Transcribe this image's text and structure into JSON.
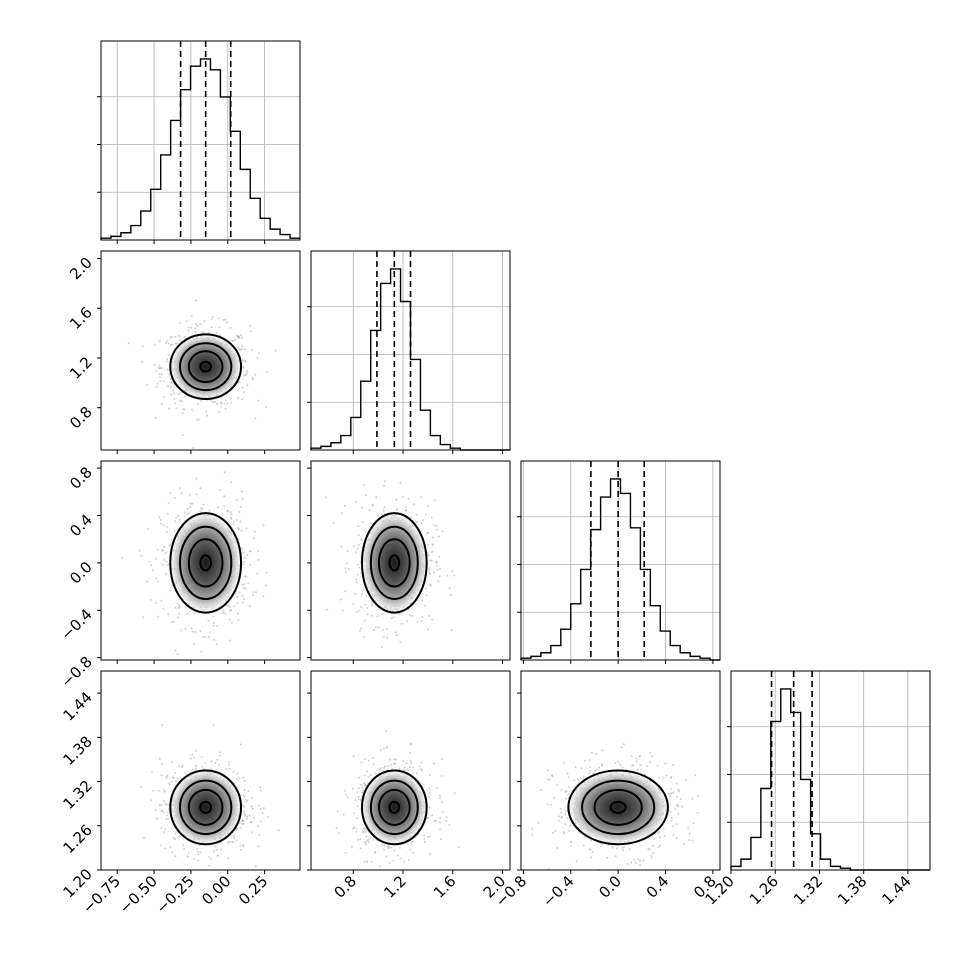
{
  "chart_data": {
    "type": "corner",
    "parameters": 4,
    "ranges": [
      [
        -0.86,
        0.49
      ],
      [
        0.46,
        2.06
      ],
      [
        -0.82,
        0.86
      ],
      [
        1.2,
        1.47
      ]
    ],
    "ticks": [
      [
        -0.75,
        -0.5,
        -0.25,
        0.0,
        0.25
      ],
      [
        0.8,
        1.2,
        1.6,
        2.0
      ],
      [
        -0.8,
        -0.4,
        0.0,
        0.4,
        0.8
      ],
      [
        1.2,
        1.26,
        1.32,
        1.38,
        1.44
      ]
    ],
    "tick_labels": [
      [
        "−0.75",
        "−0.50",
        "−0.25",
        "0.00",
        "0.25"
      ],
      [
        "0.8",
        "1.2",
        "1.6",
        "2.0"
      ],
      [
        "−0.8",
        "−0.4",
        "0.0",
        "0.4",
        "0.8"
      ],
      [
        "1.20",
        "1.26",
        "1.32",
        "1.38",
        "1.44"
      ]
    ],
    "means": [
      -0.15,
      1.13,
      0.0,
      1.285
    ],
    "stds": [
      0.12,
      0.13,
      0.21,
      0.025
    ],
    "quantiles": [
      [
        -0.32,
        -0.15,
        0.02
      ],
      [
        0.99,
        1.13,
        1.26
      ],
      [
        -0.23,
        0.0,
        0.22
      ],
      [
        1.255,
        1.285,
        1.31
      ]
    ],
    "histograms": [
      {
        "edges": [
          -0.86,
          0.49
        ],
        "counts": [
          0.01,
          0.02,
          0.04,
          0.08,
          0.16,
          0.28,
          0.47,
          0.66,
          0.83,
          0.96,
          1.0,
          0.94,
          0.79,
          0.6,
          0.39,
          0.23,
          0.12,
          0.06,
          0.03,
          0.01
        ]
      },
      {
        "edges": [
          0.46,
          2.06
        ],
        "counts": [
          0.01,
          0.02,
          0.04,
          0.08,
          0.18,
          0.38,
          0.66,
          0.92,
          1.0,
          0.82,
          0.5,
          0.22,
          0.08,
          0.03,
          0.01,
          0.0,
          0.0,
          0.0,
          0.0,
          0.0
        ]
      },
      {
        "edges": [
          -0.82,
          0.86
        ],
        "counts": [
          0.01,
          0.02,
          0.04,
          0.08,
          0.17,
          0.31,
          0.5,
          0.72,
          0.9,
          1.0,
          0.92,
          0.73,
          0.5,
          0.3,
          0.16,
          0.08,
          0.04,
          0.02,
          0.01,
          0.0
        ]
      },
      {
        "edges": [
          1.2,
          1.47
        ],
        "counts": [
          0.02,
          0.06,
          0.18,
          0.45,
          0.82,
          1.0,
          0.87,
          0.5,
          0.2,
          0.06,
          0.02,
          0.01,
          0.0,
          0.0,
          0.0,
          0.0,
          0.0,
          0.0,
          0.0,
          0.0
        ]
      }
    ],
    "grid": true
  }
}
